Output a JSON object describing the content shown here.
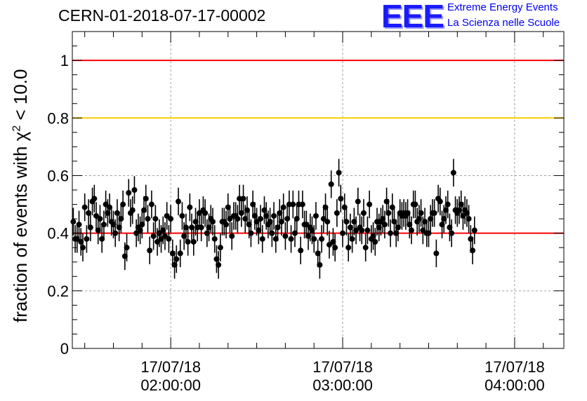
{
  "title": "CERN-01-2018-07-17-00002",
  "logo": {
    "letters": "EEE",
    "line1": "Extreme Energy Events",
    "line2": "La Scienza nelle Scuole"
  },
  "ylabel": {
    "prefix": "fraction of events with χ",
    "sup": "2",
    "suffix": " < 10.0"
  },
  "colors": {
    "upper_ref": "#ff0000",
    "mid_ref": "#ffcc00",
    "lower_ref": "#ff0000",
    "points": "#000000",
    "grid": "#a0a0a0"
  },
  "chart_data": {
    "type": "scatter",
    "title": "CERN-01-2018-07-17-00002",
    "ylabel": "fraction of events with χ2 < 10.0",
    "xlabel": "",
    "x_axis": "time",
    "xlim": [
      "2018-07-17 01:25:40",
      "2018-07-17 04:17:10"
    ],
    "ylim": [
      0,
      1.1
    ],
    "grid": true,
    "y_ticks": [
      "0",
      "0.2",
      "0.4",
      "0.6",
      "0.8",
      "1"
    ],
    "x_ticks": [
      {
        "date": "17/07/18",
        "time": "02:00:00",
        "t": "2018-07-17 02:00:00"
      },
      {
        "date": "17/07/18",
        "time": "03:00:00",
        "t": "2018-07-17 03:00:00"
      },
      {
        "date": "17/07/18",
        "time": "04:00:00",
        "t": "2018-07-17 04:00:00"
      }
    ],
    "reference_lines": [
      {
        "y": 1.0,
        "color": "#ff0000"
      },
      {
        "y": 0.8,
        "color": "#ffcc00"
      },
      {
        "y": 0.4,
        "color": "#ff0000"
      }
    ],
    "points_start": "2018-07-17 01:26:00",
    "points_step_seconds": 40,
    "error_bar_half_width": 0.048,
    "y": [
      0.44,
      0.38,
      0.38,
      0.43,
      0.37,
      0.35,
      0.49,
      0.38,
      0.47,
      0.42,
      0.51,
      0.52,
      0.46,
      0.41,
      0.45,
      0.38,
      0.43,
      0.5,
      0.47,
      0.49,
      0.44,
      0.43,
      0.4,
      0.47,
      0.42,
      0.45,
      0.5,
      0.32,
      0.35,
      0.54,
      0.47,
      0.48,
      0.55,
      0.4,
      0.42,
      0.41,
      0.43,
      0.48,
      0.52,
      0.45,
      0.34,
      0.5,
      0.39,
      0.45,
      0.37,
      0.4,
      0.38,
      0.41,
      0.39,
      0.46,
      0.38,
      0.45,
      0.33,
      0.29,
      0.31,
      0.51,
      0.33,
      0.46,
      0.39,
      0.42,
      0.37,
      0.49,
      0.42,
      0.37,
      0.44,
      0.42,
      0.47,
      0.42,
      0.48,
      0.47,
      0.4,
      0.42,
      0.45,
      0.44,
      0.38,
      0.31,
      0.29,
      0.35,
      0.44,
      0.44,
      0.43,
      0.49,
      0.45,
      0.39,
      0.46,
      0.46,
      0.45,
      0.52,
      0.47,
      0.52,
      0.45,
      0.48,
      0.43,
      0.4,
      0.5,
      0.46,
      0.44,
      0.41,
      0.45,
      0.38,
      0.48,
      0.46,
      0.43,
      0.44,
      0.4,
      0.46,
      0.38,
      0.42,
      0.47,
      0.44,
      0.49,
      0.39,
      0.45,
      0.5,
      0.38,
      0.5,
      0.4,
      0.45,
      0.5,
      0.34,
      0.5,
      0.43,
      0.43,
      0.39,
      0.42,
      0.41,
      0.38,
      0.46,
      0.33,
      0.29,
      0.38,
      0.45,
      0.49,
      0.44,
      0.36,
      0.57,
      0.37,
      0.35,
      0.47,
      0.61,
      0.52,
      0.4,
      0.49,
      0.44,
      0.35,
      0.42,
      0.38,
      0.44,
      0.41,
      0.51,
      0.42,
      0.41,
      0.47,
      0.35,
      0.41,
      0.5,
      0.38,
      0.39,
      0.37,
      0.44,
      0.42,
      0.44,
      0.45,
      0.43,
      0.51,
      0.47,
      0.4,
      0.49,
      0.44,
      0.4,
      0.42,
      0.47,
      0.46,
      0.47,
      0.46,
      0.47,
      0.43,
      0.41,
      0.5,
      0.5,
      0.44,
      0.45,
      0.47,
      0.41,
      0.44,
      0.4,
      0.4,
      0.45,
      0.47,
      0.47,
      0.33,
      0.52,
      0.51,
      0.43,
      0.45,
      0.48,
      0.5,
      0.42,
      0.4,
      0.61,
      0.48,
      0.47,
      0.48,
      0.5,
      0.46,
      0.48,
      0.47,
      0.45,
      0.38,
      0.34,
      0.41
    ]
  }
}
